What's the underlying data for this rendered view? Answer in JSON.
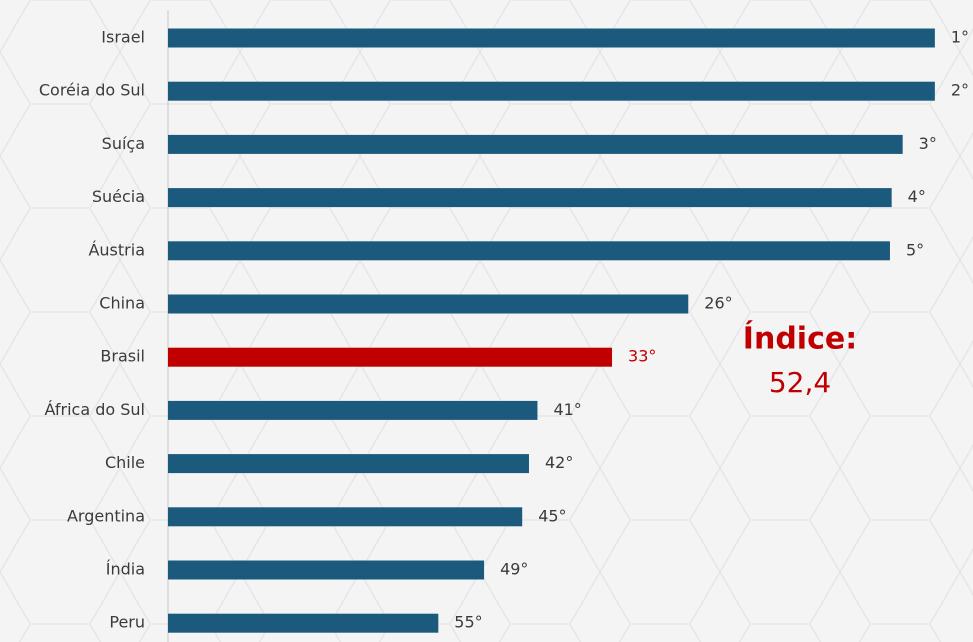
{
  "chart_data": {
    "type": "bar",
    "orientation": "horizontal",
    "categories": [
      "Israel",
      "Coréia do Sul",
      "Suíça",
      "Suécia",
      "Áustria",
      "China",
      "Brasil",
      "África do Sul",
      "Chile",
      "Argentina",
      "Índia",
      "Peru"
    ],
    "values": [
      90.5,
      90.5,
      86.7,
      85.4,
      85.2,
      61.4,
      52.4,
      43.6,
      42.6,
      41.8,
      37.3,
      31.9
    ],
    "value_labels": [
      "1°",
      "2°",
      "3°",
      "4°",
      "5°",
      "26°",
      "33°",
      "41°",
      "42°",
      "45°",
      "49°",
      "55°"
    ],
    "color": "#1b5a7d",
    "highlight": "Brasil",
    "highlight_color": "#c00000",
    "xlim": [
      0,
      95
    ],
    "annotation": {
      "title": "Índice:",
      "value": "52,4"
    }
  }
}
